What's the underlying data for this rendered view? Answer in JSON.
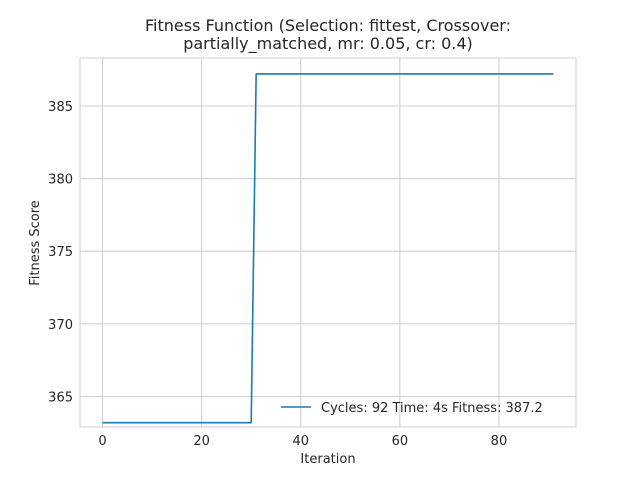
{
  "chart_data": {
    "type": "line",
    "title_lines": [
      "Fitness Function (Selection: fittest, Crossover:",
      "partially_matched, mr: 0.05, cr: 0.4)"
    ],
    "xlabel": "Iteration",
    "ylabel": "Fitness Score",
    "xlim": [
      -4.55,
      95.55
    ],
    "ylim": [
      362.9,
      388.3
    ],
    "xticks": [
      0,
      20,
      40,
      60,
      80
    ],
    "yticks": [
      365,
      370,
      375,
      380,
      385
    ],
    "grid": true,
    "legend_position": "lower-right",
    "series": [
      {
        "name": "Cycles: 92 Time: 4s Fitness: 387.2",
        "color": "#1f77b4",
        "x": [
          0,
          30,
          31,
          91
        ],
        "y": [
          363.2,
          363.2,
          387.2,
          387.2
        ]
      }
    ]
  }
}
